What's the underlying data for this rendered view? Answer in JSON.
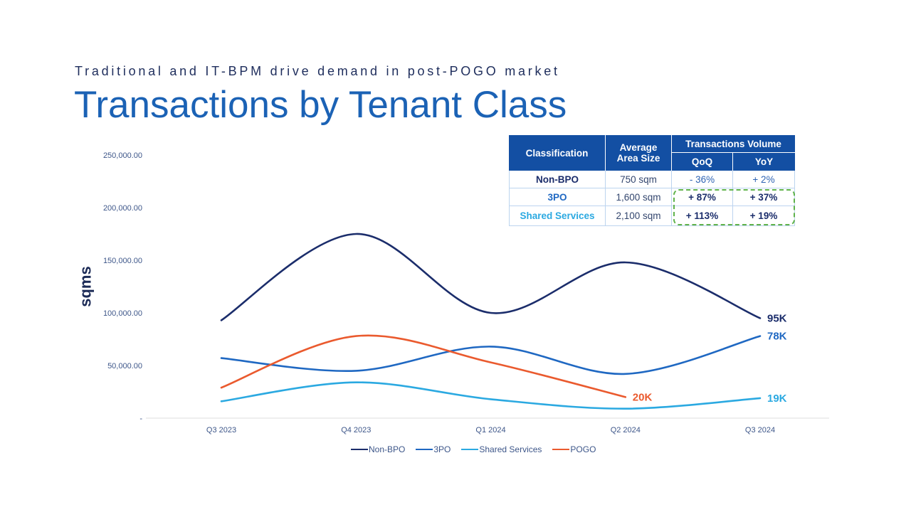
{
  "theme": {
    "title_color": "#1b62b5",
    "header_bg": "#134fa3",
    "highlight_color": "#5fb24a"
  },
  "table": {
    "headers": {
      "classification": "Classification",
      "avg_area": "Average Area Size",
      "volume": "Transactions Volume",
      "qoq": "QoQ",
      "yoy": "YoY"
    },
    "rows": [
      {
        "classification": "Non-BPO",
        "avg_area": "750 sqm",
        "qoq": "- 36%",
        "yoy": "+ 2%"
      },
      {
        "classification": "3PO",
        "avg_area": "1,600 sqm",
        "qoq": "+ 87%",
        "yoy": "+ 37%"
      },
      {
        "classification": "Shared Services",
        "avg_area": "2,100 sqm",
        "qoq": "+ 113%",
        "yoy": "+ 19%"
      }
    ]
  },
  "chart_data": {
    "type": "line",
    "subtitle": "Traditional and IT-BPM drive demand in post-POGO market",
    "title": "Transactions by Tenant Class",
    "categories": [
      "Q3 2023",
      "Q4 2023",
      "Q1 2024",
      "Q2 2024",
      "Q3 2024"
    ],
    "ylabel": "sqms",
    "ylim": [
      0,
      250000
    ],
    "yticks": [
      {
        "value": 0,
        "label": "-"
      },
      {
        "value": 50000,
        "label": "50,000.00"
      },
      {
        "value": 100000,
        "label": "100,000.00"
      },
      {
        "value": 150000,
        "label": "150,000.00"
      },
      {
        "value": 200000,
        "label": "200,000.00"
      },
      {
        "value": 250000,
        "label": "250,000.00"
      }
    ],
    "grid": false,
    "smooth": true,
    "legend_position": "bottom",
    "series": [
      {
        "name": "Non-BPO",
        "color": "#1b2d6b",
        "values": [
          93000,
          175000,
          100000,
          148000,
          95000
        ],
        "end_label": "95K"
      },
      {
        "name": "3PO",
        "color": "#1f68c2",
        "values": [
          57000,
          45000,
          68000,
          42000,
          78000
        ],
        "end_label": "78K"
      },
      {
        "name": "Shared Services",
        "color": "#2ba9e1",
        "values": [
          16000,
          34000,
          18000,
          9000,
          19000
        ],
        "end_label": "19K"
      },
      {
        "name": "POGO",
        "color": "#ea5a2e",
        "values": [
          29000,
          78000,
          53000,
          20000,
          null
        ],
        "end_label": "20K"
      }
    ]
  }
}
